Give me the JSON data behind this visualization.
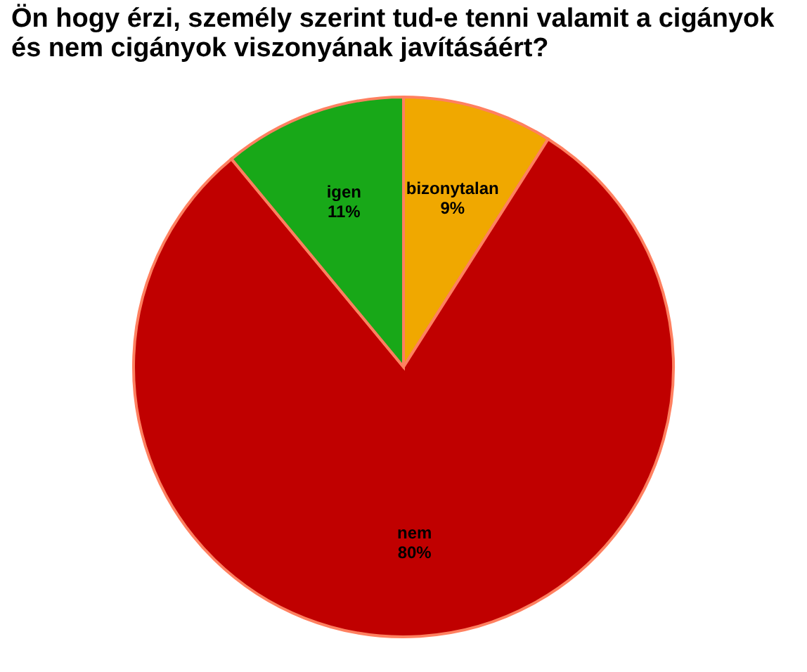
{
  "chart_data": {
    "type": "pie",
    "title": "Ön hogy érzi, személy szerint tud-e tenni valamit a cigányok és nem cigányok viszonyának javításáért?",
    "categories": [
      "bizonytalan",
      "nem",
      "igen"
    ],
    "values": [
      9,
      80,
      11
    ],
    "value_labels": [
      "9%",
      "80%",
      "11%"
    ],
    "colors": [
      "#f0a800",
      "#c00000",
      "#18a818"
    ],
    "legend": false
  }
}
